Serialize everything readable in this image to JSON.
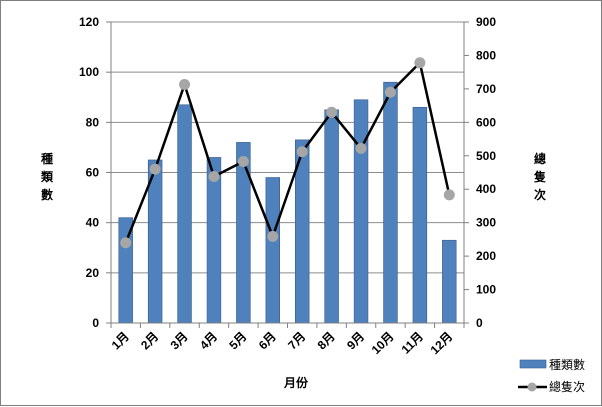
{
  "chart_data": {
    "type": "bar+line",
    "categories": [
      "1月",
      "2月",
      "3月",
      "4月",
      "5月",
      "6月",
      "7月",
      "8月",
      "9月",
      "10月",
      "11月",
      "12月"
    ],
    "xlabel": "月份",
    "series": [
      {
        "name": "種類數",
        "type": "bar",
        "axis": "left",
        "color": "#4f81bd",
        "values": [
          42,
          65,
          87,
          66,
          72,
          58,
          73,
          85,
          89,
          96,
          86,
          33
        ]
      },
      {
        "name": "總隻次",
        "type": "line",
        "axis": "right",
        "line_color": "#000000",
        "marker_color": "#a6a6a6",
        "values": [
          240,
          460,
          713,
          438,
          483,
          259,
          512,
          630,
          522,
          690,
          778,
          383
        ]
      }
    ],
    "y_left": {
      "label_chars": [
        "種",
        "類",
        "數"
      ],
      "ylim": [
        0,
        120
      ],
      "ticks": [
        "0",
        "20",
        "40",
        "60",
        "80",
        "100",
        "120"
      ]
    },
    "y_right": {
      "label_chars": [
        "總",
        "隻",
        "次"
      ],
      "ylim": [
        0,
        900
      ],
      "ticks": [
        "0",
        "100",
        "200",
        "300",
        "400",
        "500",
        "600",
        "700",
        "800",
        "900"
      ]
    },
    "grid": true,
    "legend_position": "right-bottom"
  }
}
